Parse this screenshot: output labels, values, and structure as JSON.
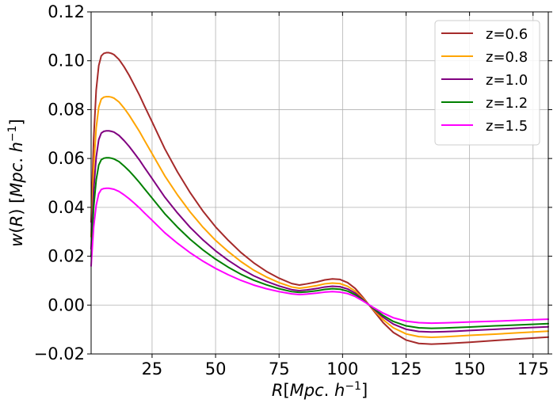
{
  "chart_data": {
    "type": "line",
    "title": "",
    "xlabel": "R[Mpc. h^-1]",
    "ylabel": "w(R) [Mpc. h^-1]",
    "xlim": [
      1,
      181
    ],
    "ylim": [
      -0.02,
      0.12
    ],
    "xticks": [
      25,
      50,
      75,
      100,
      125,
      150,
      175
    ],
    "yticks": [
      -0.02,
      0.0,
      0.02,
      0.04,
      0.06,
      0.08,
      0.1,
      0.12
    ],
    "ytick_labels": [
      "−0.02",
      "0.00",
      "0.02",
      "0.04",
      "0.06",
      "0.08",
      "0.10",
      "0.12"
    ],
    "grid": true,
    "legend_position": "top-right",
    "x": [
      1,
      2,
      3,
      4,
      5,
      6,
      7,
      8,
      9,
      10,
      12,
      14,
      16,
      18,
      20,
      22,
      25,
      30,
      35,
      40,
      45,
      50,
      55,
      60,
      65,
      70,
      75,
      80,
      83,
      86,
      90,
      93,
      96,
      99,
      102,
      105,
      108,
      112,
      116,
      120,
      125,
      130,
      135,
      140,
      145,
      150,
      160,
      170,
      181
    ],
    "series": [
      {
        "name": "z=0.6",
        "color": "#a52a2a",
        "values": [
          0.034,
          0.068,
          0.088,
          0.098,
          0.102,
          0.103,
          0.1033,
          0.1033,
          0.103,
          0.1025,
          0.1005,
          0.0975,
          0.094,
          0.09,
          0.086,
          0.0815,
          0.075,
          0.064,
          0.0545,
          0.046,
          0.0385,
          0.032,
          0.0265,
          0.0215,
          0.0173,
          0.0138,
          0.011,
          0.0088,
          0.0082,
          0.0087,
          0.0095,
          0.0103,
          0.0107,
          0.0105,
          0.0092,
          0.0068,
          0.0032,
          -0.002,
          -0.0072,
          -0.0112,
          -0.0143,
          -0.0157,
          -0.016,
          -0.0158,
          -0.0155,
          -0.0152,
          -0.0145,
          -0.0138,
          -0.0131
        ]
      },
      {
        "name": "z=0.8",
        "color": "#ffa500",
        "values": [
          0.028,
          0.056,
          0.0725,
          0.081,
          0.0843,
          0.0851,
          0.0853,
          0.0853,
          0.0851,
          0.0847,
          0.0831,
          0.0806,
          0.0777,
          0.0744,
          0.0711,
          0.0674,
          0.062,
          0.0529,
          0.0451,
          0.0381,
          0.0319,
          0.0265,
          0.0219,
          0.0178,
          0.0143,
          0.0115,
          0.0092,
          0.0074,
          0.0069,
          0.0073,
          0.008,
          0.0087,
          0.009,
          0.0088,
          0.0077,
          0.0057,
          0.0027,
          -0.0017,
          -0.006,
          -0.0093,
          -0.0118,
          -0.0129,
          -0.0132,
          -0.013,
          -0.0127,
          -0.0124,
          -0.0119,
          -0.0113,
          -0.0107
        ]
      },
      {
        "name": "z=1.0",
        "color": "#800080",
        "values": [
          0.023,
          0.047,
          0.0605,
          0.0677,
          0.0704,
          0.0711,
          0.0713,
          0.0713,
          0.0711,
          0.0708,
          0.0694,
          0.0673,
          0.0649,
          0.0622,
          0.0594,
          0.0563,
          0.0518,
          0.0442,
          0.0377,
          0.0318,
          0.0267,
          0.0222,
          0.0183,
          0.0149,
          0.012,
          0.0097,
          0.0078,
          0.0063,
          0.0059,
          0.0062,
          0.0068,
          0.0074,
          0.0077,
          0.0075,
          0.0066,
          0.0049,
          0.0023,
          -0.0014,
          -0.005,
          -0.0078,
          -0.0099,
          -0.0108,
          -0.011,
          -0.0109,
          -0.0107,
          -0.0104,
          -0.0099,
          -0.0094,
          -0.0089
        ]
      },
      {
        "name": "z=1.2",
        "color": "#008000",
        "values": [
          0.02,
          0.04,
          0.0512,
          0.0573,
          0.0595,
          0.0601,
          0.0603,
          0.0603,
          0.0601,
          0.0598,
          0.0587,
          0.0569,
          0.0549,
          0.0526,
          0.0502,
          0.0476,
          0.0438,
          0.0374,
          0.0319,
          0.0269,
          0.0226,
          0.0188,
          0.0155,
          0.0126,
          0.0102,
          0.0083,
          0.0067,
          0.0055,
          0.0052,
          0.0054,
          0.0059,
          0.0064,
          0.0067,
          0.0065,
          0.0057,
          0.0042,
          0.002,
          -0.0012,
          -0.0043,
          -0.0067,
          -0.0085,
          -0.0093,
          -0.0095,
          -0.0094,
          -0.0092,
          -0.009,
          -0.0085,
          -0.0081,
          -0.0076
        ]
      },
      {
        "name": "z=1.5",
        "color": "#ff00ff",
        "values": [
          0.016,
          0.032,
          0.0408,
          0.0456,
          0.0473,
          0.0477,
          0.0478,
          0.0478,
          0.0476,
          0.0474,
          0.0465,
          0.0451,
          0.0435,
          0.0417,
          0.0398,
          0.0377,
          0.0347,
          0.0296,
          0.0253,
          0.0214,
          0.018,
          0.015,
          0.0124,
          0.0101,
          0.0082,
          0.0067,
          0.0055,
          0.0046,
          0.0043,
          0.0045,
          0.0049,
          0.0053,
          0.0055,
          0.0053,
          0.0047,
          0.0035,
          0.0017,
          -0.0009,
          -0.0033,
          -0.0052,
          -0.0066,
          -0.0072,
          -0.0074,
          -0.0073,
          -0.0071,
          -0.0069,
          -0.0066,
          -0.0062,
          -0.0058
        ]
      }
    ]
  }
}
